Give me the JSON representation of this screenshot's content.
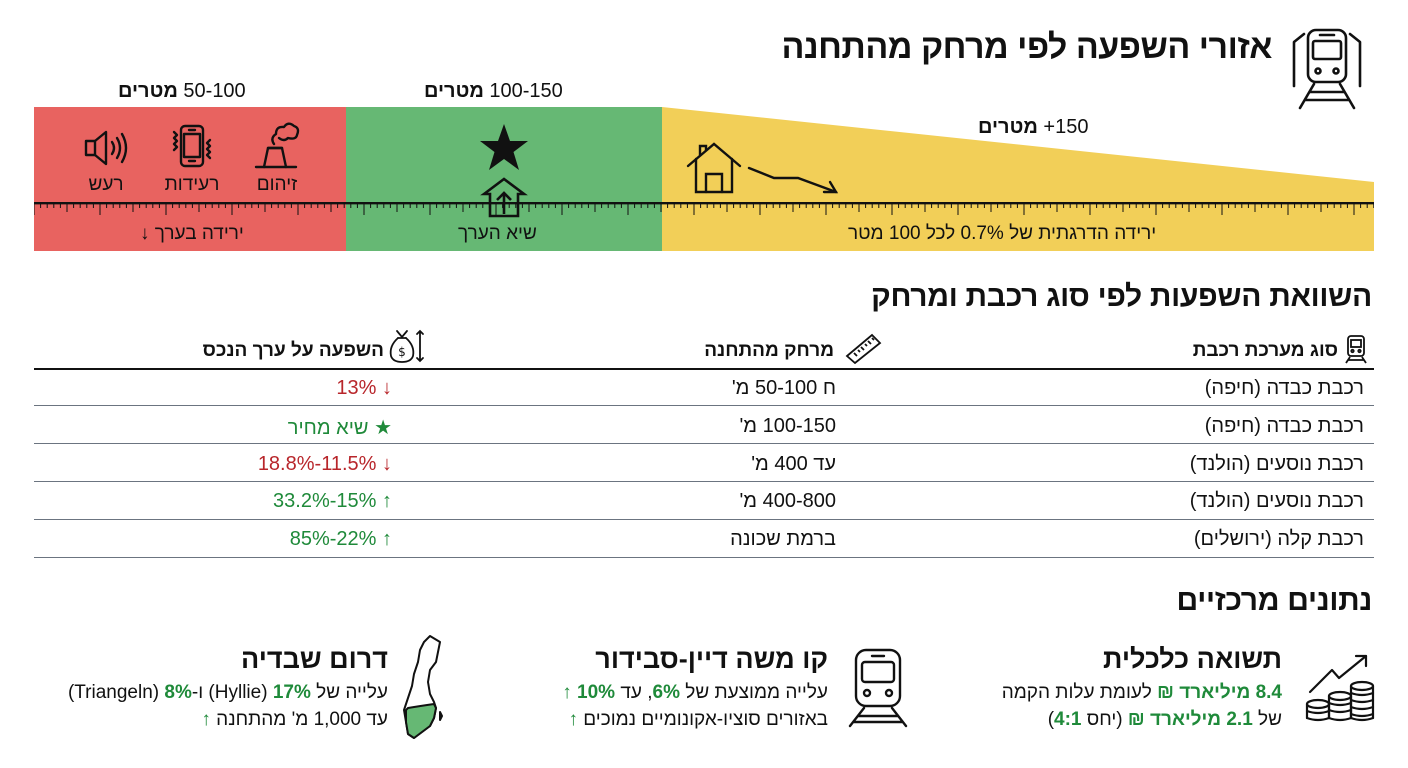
{
  "header": {
    "title": "אזורי השפעה לפי מרחק מהתחנה",
    "icon": "train-station-icon"
  },
  "zones": [
    {
      "id": "near",
      "range": "50-100",
      "unit": "מטרים",
      "color": "#e86360",
      "impacts": [
        {
          "icon": "pollution-factory-icon",
          "label": "זיהום"
        },
        {
          "icon": "vibration-phone-icon",
          "label": "רעידות"
        },
        {
          "icon": "speaker-noise-icon",
          "label": "רעש"
        }
      ],
      "caption": "ירידה בערך",
      "caption_icon": "arrow-down-icon"
    },
    {
      "id": "optimal",
      "range": "100-150",
      "unit": "מטרים",
      "color": "#66b874",
      "icon": "star-icon",
      "caption": "שיא הערך",
      "caption_icon": "house-up-arrow-icon"
    },
    {
      "id": "far",
      "range": "150+",
      "unit": "מטרים",
      "color": "#f2cf58",
      "icon": "house-decline-icon",
      "caption": "ירידה הדרגתית של 0.7% לכל 100 מטר"
    }
  ],
  "comparison": {
    "title": "השוואת השפעות לפי סוג רכבת ומרחק",
    "columns": [
      {
        "label": "סוג מערכת רכבת",
        "icon": "train-icon"
      },
      {
        "label": "מרחק מהתחנה",
        "icon": "ruler-icon"
      },
      {
        "label": "השפעה על ערך הנכס",
        "icon": "money-bag-icon"
      }
    ],
    "rows": [
      {
        "system": "רכבת כבדה (חיפה)",
        "distance": "ח 50-100 מ'",
        "impact": "13%",
        "trend": "down"
      },
      {
        "system": "רכבת כבדה (חיפה)",
        "distance": "100-150 מ'",
        "impact": "שיא מחיר",
        "trend": "peak"
      },
      {
        "system": "רכבת נוסעים (הולנד)",
        "distance": "עד 400 מ'",
        "impact": "11.5%-18.8%",
        "trend": "down"
      },
      {
        "system": "רכבת נוסעים (הולנד)",
        "distance": "400-800 מ'",
        "impact": "15%-33.2%",
        "trend": "up"
      },
      {
        "system": "רכבת קלה (ירושלים)",
        "distance": "ברמת שכונה",
        "impact": "22%-85%",
        "trend": "up"
      }
    ]
  },
  "key_facts": {
    "title": "נתונים מרכזיים",
    "items": [
      {
        "title": "תשואה כלכלית",
        "icon": "coins-growth-icon",
        "line1": {
          "highlight": "8.4 מיליארד ₪",
          "text": " לעומת עלות הקמה"
        },
        "line2": {
          "prefix": "של ",
          "highlight": "2.1 מיליארד ₪",
          "mid": " (יחס ",
          "ratio": "4:1",
          "suffix": ")"
        }
      },
      {
        "title": "קו משה דיין-סבידור",
        "icon": "train-front-icon",
        "line1": {
          "prefix": "עלייה ממוצעת של ",
          "highlight1": "6%",
          "mid": ", עד ",
          "highlight2": "10%"
        },
        "line2": {
          "text": "באזורים סוציו-אקונומיים נמוכים"
        }
      },
      {
        "title": "דרום שבדיה",
        "icon": "sweden-map-icon",
        "line1": {
          "prefix": "עלייה של ",
          "highlight1": "17%",
          "mid": " (Hyllie) ו-",
          "highlight2": "8%",
          "suffix": " (Triangeln)"
        },
        "line2": {
          "text": "עד 1,000 מ' מהתחנה"
        }
      }
    ]
  },
  "colors": {
    "red_zone": "#e86360",
    "green_zone": "#66b874",
    "yellow_zone": "#f2cf58",
    "negative": "#b8262b",
    "positive": "#1f8a3a"
  }
}
